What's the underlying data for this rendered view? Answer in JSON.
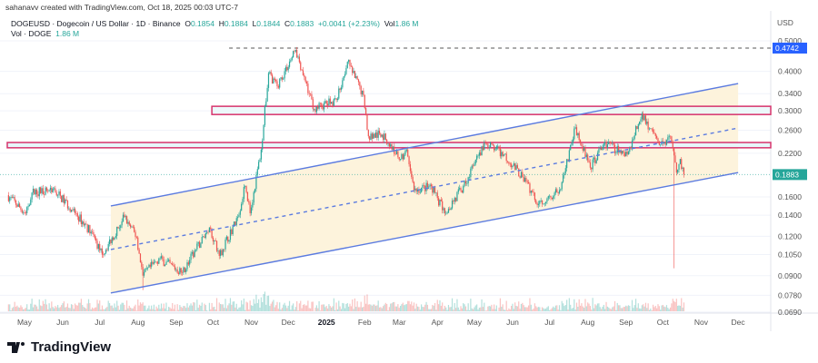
{
  "credit": "sahanavv created with TradingView.com, Oct 18, 2025 00:03 UTC-7",
  "legend": {
    "symbol": "DOGEUSD · Dogecoin / US Dollar · 1D · Binance",
    "o_label": "O",
    "o": "0.1854",
    "h_label": "H",
    "h": "0.1884",
    "l_label": "L",
    "l": "0.1844",
    "c_label": "C",
    "c": "0.1883",
    "change": "+0.0041 (+2.23%)",
    "vol_label": "Vol",
    "vol": "1.86 M",
    "vol2_label": "Vol · DOGE",
    "vol2": "1.86 M"
  },
  "brand": "TradingView",
  "chart_data": {
    "type": "candlestick",
    "title": "DOGEUSD · Dogecoin / US Dollar · 1D · Binance",
    "currency": "USD",
    "y_scale": "log",
    "ylim": [
      0.069,
      0.5
    ],
    "y_ticks": [
      "0.5000",
      "0.4000",
      "0.3400",
      "0.3000",
      "0.2600",
      "0.2200",
      "0.1600",
      "0.1400",
      "0.1200",
      "0.1050",
      "0.0900",
      "0.0780",
      "0.0690"
    ],
    "x_ticks": [
      "May",
      "Jun",
      "Jul",
      "Aug",
      "Sep",
      "Oct",
      "Nov",
      "Dec",
      "2025",
      "Feb",
      "Mar",
      "Apr",
      "May",
      "Jun",
      "Jul",
      "Aug",
      "Sep",
      "Oct",
      "Nov",
      "Dec"
    ],
    "x_tick_dates": [
      "2024-05-01",
      "2024-06-01",
      "2024-07-01",
      "2024-08-01",
      "2024-09-01",
      "2024-10-01",
      "2024-11-01",
      "2024-12-01",
      "2025-01-01",
      "2025-02-01",
      "2025-03-01",
      "2025-04-01",
      "2025-05-01",
      "2025-06-01",
      "2025-07-01",
      "2025-08-01",
      "2025-09-01",
      "2025-10-01",
      "2025-11-01",
      "2025-12-01"
    ],
    "xlim": [
      "2024-04-16",
      "2025-12-25"
    ],
    "close_path": [
      [
        "2024-04-17",
        0.162
      ],
      [
        "2024-05-02",
        0.142
      ],
      [
        "2024-05-07",
        0.165
      ],
      [
        "2024-05-24",
        0.17
      ],
      [
        "2024-06-09",
        0.145
      ],
      [
        "2024-06-24",
        0.124
      ],
      [
        "2024-07-03",
        0.105
      ],
      [
        "2024-07-21",
        0.138
      ],
      [
        "2024-07-31",
        0.119
      ],
      [
        "2024-08-05",
        0.09
      ],
      [
        "2024-08-18",
        0.102
      ],
      [
        "2024-09-06",
        0.092
      ],
      [
        "2024-09-28",
        0.128
      ],
      [
        "2024-10-06",
        0.104
      ],
      [
        "2024-10-21",
        0.138
      ],
      [
        "2024-10-27",
        0.173
      ],
      [
        "2024-10-31",
        0.142
      ],
      [
        "2024-11-09",
        0.226
      ],
      [
        "2024-11-15",
        0.395
      ],
      [
        "2024-11-22",
        0.359
      ],
      [
        "2024-12-07",
        0.468
      ],
      [
        "2024-12-14",
        0.384
      ],
      [
        "2024-12-22",
        0.304
      ],
      [
        "2025-01-09",
        0.325
      ],
      [
        "2025-01-18",
        0.429
      ],
      [
        "2025-01-31",
        0.336
      ],
      [
        "2025-02-04",
        0.249
      ],
      [
        "2025-02-15",
        0.252
      ],
      [
        "2025-03-02",
        0.211
      ],
      [
        "2025-03-07",
        0.226
      ],
      [
        "2025-03-13",
        0.168
      ],
      [
        "2025-03-27",
        0.173
      ],
      [
        "2025-04-07",
        0.142
      ],
      [
        "2025-04-22",
        0.173
      ],
      [
        "2025-05-10",
        0.237
      ],
      [
        "2025-05-25",
        0.218
      ],
      [
        "2025-06-09",
        0.185
      ],
      [
        "2025-06-22",
        0.152
      ],
      [
        "2025-07-09",
        0.168
      ],
      [
        "2025-07-22",
        0.266
      ],
      [
        "2025-08-03",
        0.198
      ],
      [
        "2025-08-14",
        0.236
      ],
      [
        "2025-09-02",
        0.218
      ],
      [
        "2025-09-14",
        0.294
      ],
      [
        "2025-09-28",
        0.234
      ],
      [
        "2025-10-07",
        0.249
      ],
      [
        "2025-10-12",
        0.191
      ],
      [
        "2025-10-15",
        0.211
      ],
      [
        "2025-10-18",
        0.1883
      ]
    ],
    "wick_lows": [
      [
        "2024-08-05",
        0.081
      ],
      [
        "2025-10-10",
        0.095
      ]
    ],
    "last_price": "0.1883",
    "ath_level": "0.4742",
    "drawings": {
      "channel_upper": [
        [
          "2024-07-10",
          0.1497
        ],
        [
          "2025-12-01",
          0.366
        ]
      ],
      "channel_lower": [
        [
          "2024-07-10",
          0.0793
        ],
        [
          "2025-12-01",
          0.191
        ]
      ],
      "ath_line_start": "2024-10-14",
      "resistance_box": {
        "start": "2024-09-30",
        "top": 0.31,
        "bottom": 0.292
      },
      "support_band": {
        "top": 0.238,
        "bottom": 0.229
      }
    },
    "colors": {
      "up": "#26a69a",
      "down": "#ef5350",
      "channel": "#5b7be0",
      "channel_fill": "#fdf3dc",
      "zone": "#d6336c",
      "zone_fill": "#e6f6fa",
      "price_label": "#26a69a",
      "ath_label": "#2962ff"
    }
  }
}
